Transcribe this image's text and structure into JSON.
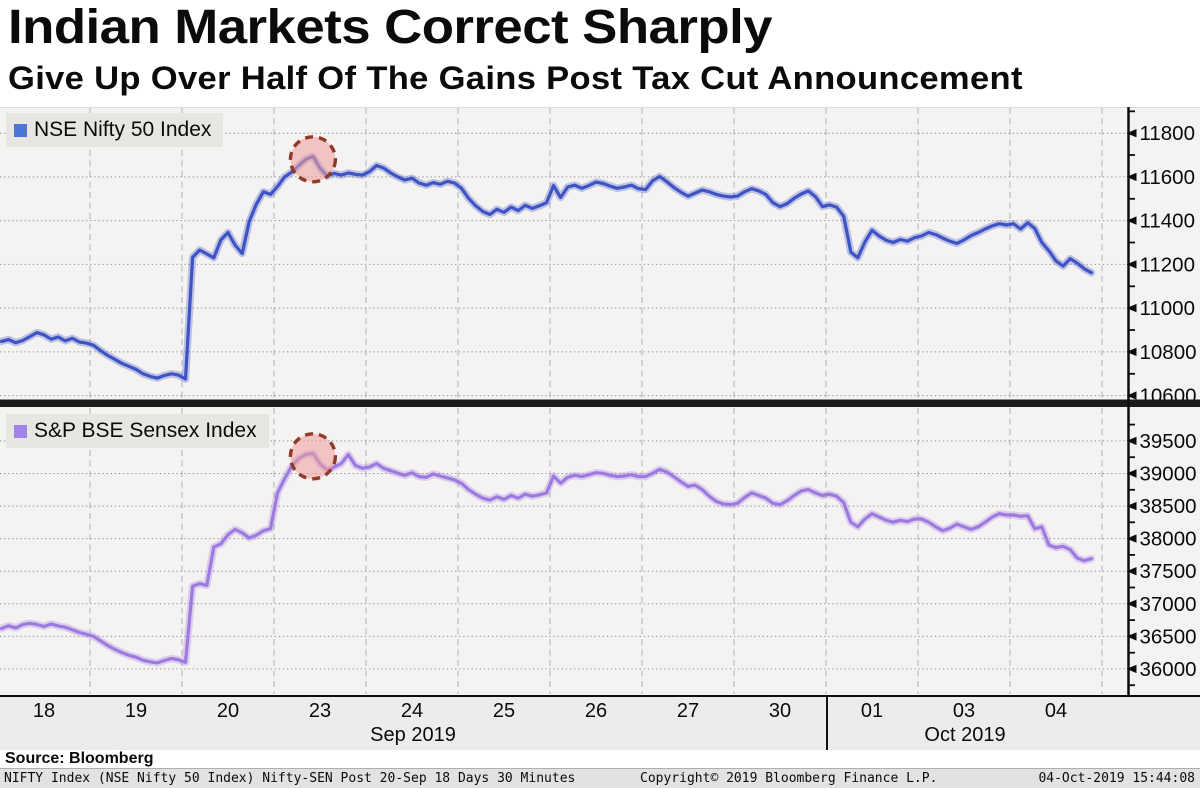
{
  "header": {
    "title": "Indian Markets Correct Sharply",
    "subtitle": "Give Up Over Half Of The Gains Post Tax Cut Announcement"
  },
  "colors": {
    "nifty_line": "#3e53c5",
    "nifty_marker": "#4f74d9",
    "sensex_line": "#9d79e0",
    "sensex_marker": "#a184e6",
    "highlight_fill": "#f0a0a0",
    "highlight_stroke": "#8f3b28",
    "grid_h": "#909090",
    "grid_v": "#bdbdbd",
    "panel_bg": "#f4f3f1",
    "axis": "#0d0d0d"
  },
  "xaxis": {
    "day_labels": [
      "18",
      "19",
      "20",
      "23",
      "24",
      "25",
      "26",
      "27",
      "30",
      "01",
      "03",
      "04"
    ],
    "month_labels": [
      {
        "label": "Sep 2019",
        "center": 413
      },
      {
        "label": "Oct 2019",
        "center": 965
      }
    ],
    "month_divider_x": 826
  },
  "chart_data": [
    {
      "type": "line",
      "name": "NSE Nifty 50 Index",
      "color_key": "nifty",
      "yticks": [
        10600,
        10800,
        11000,
        11200,
        11400,
        11600,
        11800
      ],
      "ylim": [
        10580,
        11915
      ],
      "highlight": {
        "shape": "dashed-circle",
        "meaning": "peak after tax-cut rally"
      },
      "values_by_day": [
        [
          10848,
          10856,
          10842,
          10852,
          10870,
          10888,
          10878,
          10858,
          10868,
          10850,
          10862,
          10845,
          10840
        ],
        [
          10830,
          10806,
          10784,
          10766,
          10748,
          10734,
          10720,
          10700,
          10688,
          10680,
          10692,
          10700,
          10694
        ],
        [
          10676,
          11232,
          11266,
          11248,
          11230,
          11312,
          11346,
          11288,
          11250,
          11396,
          11475,
          11532,
          11520
        ],
        [
          11556,
          11600,
          11622,
          11652,
          11680,
          11694,
          11640,
          11604,
          11616,
          11608,
          11618,
          11612,
          11608
        ],
        [
          11624,
          11652,
          11640,
          11618,
          11600,
          11586,
          11594,
          11572,
          11562,
          11574,
          11566,
          11580,
          11572
        ],
        [
          11548,
          11502,
          11468,
          11442,
          11428,
          11452,
          11438,
          11462,
          11446,
          11470,
          11456,
          11468,
          11482
        ],
        [
          11560,
          11506,
          11554,
          11562,
          11548,
          11560,
          11576,
          11570,
          11558,
          11548,
          11554,
          11562,
          11546
        ],
        [
          11542,
          11582,
          11602,
          11578,
          11552,
          11530,
          11512,
          11526,
          11540,
          11532,
          11520,
          11512,
          11508
        ],
        [
          11512,
          11532,
          11546,
          11536,
          11520,
          11482,
          11464,
          11478,
          11502,
          11522,
          11536,
          11510,
          11464
        ],
        [
          11472,
          11462,
          11420,
          11256,
          11230,
          11302,
          11356,
          11330,
          11310,
          11300,
          11314,
          11306,
          11322
        ],
        [
          11330,
          11346,
          11336,
          11320,
          11306,
          11296,
          11312,
          11332,
          11346,
          11362,
          11376,
          11386,
          11380
        ],
        [
          11386,
          11362,
          11390,
          11364,
          11300,
          11262,
          11216,
          11192,
          11226,
          11206,
          11180,
          11162
        ]
      ]
    },
    {
      "type": "line",
      "name": "S&P BSE Sensex Index",
      "color_key": "sensex",
      "yticks": [
        36000,
        36500,
        37000,
        37500,
        38000,
        38500,
        39000,
        39500
      ],
      "ylim": [
        35600,
        40005
      ],
      "highlight": {
        "shape": "dashed-circle",
        "meaning": "peak after tax-cut rally"
      },
      "values_by_day": [
        [
          36620,
          36662,
          36630,
          36680,
          36700,
          36682,
          36652,
          36690,
          36660,
          36640,
          36600,
          36560,
          36532
        ],
        [
          36500,
          36430,
          36360,
          36300,
          36252,
          36210,
          36180,
          36132,
          36110,
          36092,
          36130,
          36160,
          36140
        ],
        [
          36104,
          37270,
          37310,
          37282,
          37870,
          37920,
          38060,
          38142,
          38090,
          38012,
          38052,
          38122,
          38152
        ],
        [
          38700,
          38920,
          39110,
          39230,
          39290,
          39310,
          39150,
          39052,
          39100,
          39152,
          39290,
          39122,
          39080
        ],
        [
          39100,
          39152,
          39080,
          39042,
          39002,
          38972,
          39012,
          38952,
          38942,
          38992,
          38962,
          38932,
          38902
        ],
        [
          38850,
          38752,
          38680,
          38622,
          38592,
          38642,
          38602,
          38662,
          38622,
          38682,
          38652,
          38672,
          38702
        ],
        [
          38960,
          38852,
          38942,
          38972,
          38952,
          38982,
          39012,
          39002,
          38972,
          38952,
          38962,
          38982,
          38952
        ],
        [
          38952,
          39002,
          39062,
          39022,
          38952,
          38872,
          38802,
          38822,
          38752,
          38652,
          38572,
          38532,
          38522
        ],
        [
          38542,
          38632,
          38702,
          38662,
          38622,
          38542,
          38522,
          38582,
          38662,
          38732,
          38752,
          38702,
          38662
        ],
        [
          38682,
          38652,
          38552,
          38252,
          38182,
          38302,
          38382,
          38332,
          38282,
          38252,
          38282,
          38262,
          38302
        ],
        [
          38302,
          38252,
          38182,
          38122,
          38162,
          38222,
          38182,
          38142,
          38182,
          38252,
          38332,
          38382,
          38362
        ],
        [
          38362,
          38342,
          38352,
          38152,
          38182,
          37902,
          37862,
          37882,
          37832,
          37702,
          37662,
          37692
        ]
      ]
    }
  ],
  "source_line": "Source: Bloomberg",
  "footer": {
    "left": "NIFTY Index (NSE Nifty 50 Index) Nifty-SEN Post 20-Sep 18 Days 30 Minutes",
    "center": "Copyright© 2019 Bloomberg Finance L.P.",
    "right": "04-Oct-2019 15:44:08"
  }
}
